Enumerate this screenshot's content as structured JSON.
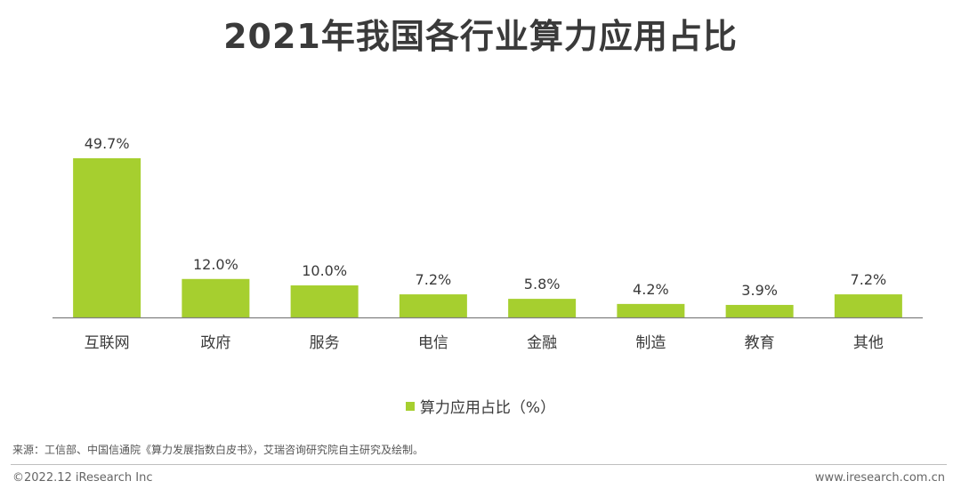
{
  "chart_data": {
    "type": "bar",
    "title": "2021年我国各行业算力应用占比",
    "categories": [
      "互联网",
      "政府",
      "服务",
      "电信",
      "金融",
      "制造",
      "教育",
      "其他"
    ],
    "series": [
      {
        "name": "算力应用占比（%）",
        "values": [
          49.7,
          12.0,
          10.0,
          7.2,
          5.8,
          4.2,
          3.9,
          7.2
        ],
        "labels": [
          "49.7%",
          "12.0%",
          "10.0%",
          "7.2%",
          "5.8%",
          "4.2%",
          "3.9%",
          "7.2%"
        ]
      }
    ],
    "xlabel": "",
    "ylabel": "",
    "ylim": [
      0,
      50
    ],
    "grid": false,
    "legend": "bottom-center"
  },
  "colors": {
    "bar": "#a6cf2f",
    "axis": "#808080"
  },
  "footer": {
    "source": "来源：工信部、中国信通院《算力发展指数白皮书》，艾瑞咨询研究院自主研究及绘制。",
    "copyright": "©2022.12 iResearch Inc",
    "website": "www.iresearch.com.cn"
  }
}
